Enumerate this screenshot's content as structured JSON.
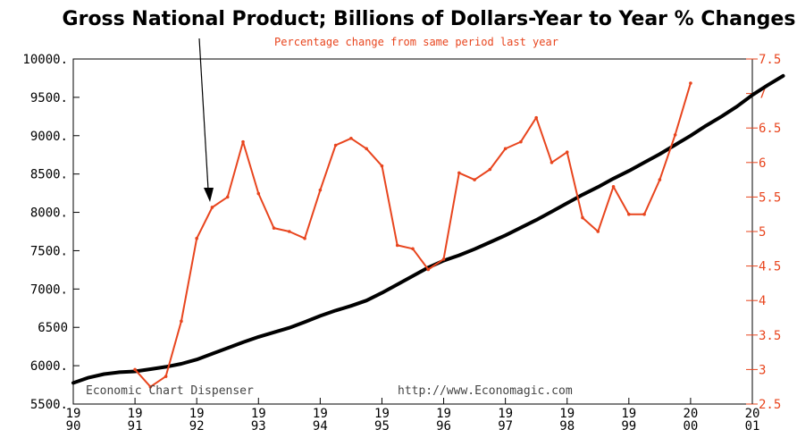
{
  "chart_data": {
    "type": "line",
    "title": "Gross National Product; Billions of Dollars-Year to Year % Changes",
    "subtitle": "Percentage change from same period last year",
    "watermark_left": "Economic Chart Dispenser",
    "watermark_right": "http://www.Economagic.com",
    "colors": {
      "gnp": "#000000",
      "pct": "#e8451e",
      "axis": "#000000"
    },
    "y_left": {
      "lim": [
        5500,
        10000
      ],
      "ticks": [
        {
          "v": 10000,
          "label": "10000."
        },
        {
          "v": 9500,
          "label": "9500."
        },
        {
          "v": 9000,
          "label": "9000."
        },
        {
          "v": 8500,
          "label": "8500."
        },
        {
          "v": 8000,
          "label": "8000."
        },
        {
          "v": 7500,
          "label": "7500."
        },
        {
          "v": 7000,
          "label": "7000."
        },
        {
          "v": 6500,
          "label": "6500"
        },
        {
          "v": 6000,
          "label": "6000."
        },
        {
          "v": 5500,
          "label": "5500."
        }
      ]
    },
    "y_right": {
      "lim": [
        2.5,
        7.5
      ],
      "ticks": [
        {
          "v": 7.5,
          "label": "7.5"
        },
        {
          "v": 7,
          "label": "7"
        },
        {
          "v": 6.5,
          "label": "6.5"
        },
        {
          "v": 6,
          "label": "6"
        },
        {
          "v": 5.5,
          "label": "5.5"
        },
        {
          "v": 5,
          "label": "5"
        },
        {
          "v": 4.5,
          "label": "4.5"
        },
        {
          "v": 4,
          "label": "4"
        },
        {
          "v": 3.5,
          "label": "3.5"
        },
        {
          "v": 3,
          "label": "3"
        },
        {
          "v": 2.5,
          "label": "2.5"
        }
      ]
    },
    "x": {
      "lim": [
        1990,
        2001
      ],
      "ticks": [
        {
          "v": 1990,
          "top": "19",
          "bottom": "90"
        },
        {
          "v": 1991,
          "top": "19",
          "bottom": "91"
        },
        {
          "v": 1992,
          "top": "19",
          "bottom": "92"
        },
        {
          "v": 1993,
          "top": "19",
          "bottom": "93"
        },
        {
          "v": 1994,
          "top": "19",
          "bottom": "94"
        },
        {
          "v": 1995,
          "top": "19",
          "bottom": "95"
        },
        {
          "v": 1996,
          "top": "19",
          "bottom": "96"
        },
        {
          "v": 1997,
          "top": "19",
          "bottom": "97"
        },
        {
          "v": 1998,
          "top": "19",
          "bottom": "98"
        },
        {
          "v": 1999,
          "top": "19",
          "bottom": "99"
        },
        {
          "v": 2000,
          "top": "20",
          "bottom": "00"
        },
        {
          "v": 2001,
          "top": "20",
          "bottom": "01"
        }
      ]
    },
    "series": [
      {
        "key": "gnp",
        "axis": "left",
        "points": [
          [
            1990.0,
            5775
          ],
          [
            1990.25,
            5845
          ],
          [
            1990.5,
            5890
          ],
          [
            1990.75,
            5915
          ],
          [
            1991.0,
            5925
          ],
          [
            1991.25,
            5955
          ],
          [
            1991.5,
            5985
          ],
          [
            1991.75,
            6025
          ],
          [
            1992.0,
            6080
          ],
          [
            1992.25,
            6155
          ],
          [
            1992.5,
            6230
          ],
          [
            1992.75,
            6305
          ],
          [
            1993.0,
            6375
          ],
          [
            1993.25,
            6435
          ],
          [
            1993.5,
            6495
          ],
          [
            1993.75,
            6570
          ],
          [
            1994.0,
            6650
          ],
          [
            1994.25,
            6720
          ],
          [
            1994.5,
            6780
          ],
          [
            1994.75,
            6850
          ],
          [
            1995.0,
            6950
          ],
          [
            1995.25,
            7060
          ],
          [
            1995.5,
            7170
          ],
          [
            1995.75,
            7280
          ],
          [
            1996.0,
            7370
          ],
          [
            1996.25,
            7440
          ],
          [
            1996.5,
            7520
          ],
          [
            1996.75,
            7610
          ],
          [
            1997.0,
            7700
          ],
          [
            1997.25,
            7800
          ],
          [
            1997.5,
            7900
          ],
          [
            1997.75,
            8010
          ],
          [
            1998.0,
            8120
          ],
          [
            1998.25,
            8230
          ],
          [
            1998.5,
            8330
          ],
          [
            1998.75,
            8440
          ],
          [
            1999.0,
            8540
          ],
          [
            1999.25,
            8650
          ],
          [
            1999.5,
            8760
          ],
          [
            1999.75,
            8880
          ],
          [
            2000.0,
            9000
          ],
          [
            2000.25,
            9130
          ],
          [
            2000.5,
            9250
          ],
          [
            2000.75,
            9380
          ],
          [
            2001.0,
            9530
          ],
          [
            2001.25,
            9660
          ],
          [
            2001.5,
            9780
          ]
        ]
      },
      {
        "key": "pct",
        "axis": "right",
        "points": [
          [
            1991.0,
            3.0
          ],
          [
            1991.25,
            2.75
          ],
          [
            1991.5,
            2.9
          ],
          [
            1991.75,
            3.7
          ],
          [
            1992.0,
            4.9
          ],
          [
            1992.25,
            5.35
          ],
          [
            1992.5,
            5.5
          ],
          [
            1992.75,
            6.3
          ],
          [
            1993.0,
            5.55
          ],
          [
            1993.25,
            5.05
          ],
          [
            1993.5,
            5.0
          ],
          [
            1993.75,
            4.9
          ],
          [
            1994.0,
            5.6
          ],
          [
            1994.25,
            6.25
          ],
          [
            1994.5,
            6.35
          ],
          [
            1994.75,
            6.2
          ],
          [
            1995.0,
            5.95
          ],
          [
            1995.25,
            4.8
          ],
          [
            1995.5,
            4.75
          ],
          [
            1995.75,
            4.45
          ],
          [
            1996.0,
            4.6
          ],
          [
            1996.25,
            5.85
          ],
          [
            1996.5,
            5.75
          ],
          [
            1996.75,
            5.9
          ],
          [
            1997.0,
            6.2
          ],
          [
            1997.25,
            6.3
          ],
          [
            1997.5,
            6.65
          ],
          [
            1997.75,
            6.0
          ],
          [
            1998.0,
            6.15
          ],
          [
            1998.25,
            5.2
          ],
          [
            1998.5,
            5.0
          ],
          [
            1998.75,
            5.65
          ],
          [
            1999.0,
            5.25
          ],
          [
            1999.25,
            5.25
          ],
          [
            1999.5,
            5.75
          ],
          [
            1999.75,
            6.4
          ],
          [
            2000.0,
            7.15
          ]
        ]
      }
    ]
  }
}
